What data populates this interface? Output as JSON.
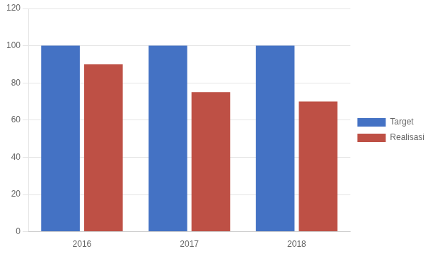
{
  "chart_data": {
    "type": "bar",
    "categories": [
      "2016",
      "2017",
      "2018"
    ],
    "series": [
      {
        "name": "Target",
        "color": "#4472C4",
        "values": [
          100,
          100,
          100
        ]
      },
      {
        "name": "Realisasi",
        "color": "#BE5045",
        "values": [
          90,
          75,
          70
        ]
      }
    ],
    "ylim": [
      0,
      120
    ],
    "yticks": [
      0,
      20,
      40,
      60,
      80,
      100,
      120
    ],
    "grid": true,
    "legend": "right"
  }
}
